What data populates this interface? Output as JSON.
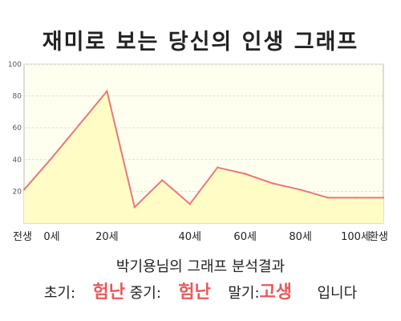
{
  "title": "재미로 보는 당신의 인생 그래프",
  "summary": {
    "subject": "박기용님의 그래프 분석결과",
    "early_label": "초기:",
    "early_value": "험난",
    "middle_label": "중기:",
    "middle_value": "험난",
    "late_label": "말기:",
    "late_value": "고생",
    "suffix": "입니다"
  },
  "colors": {
    "area_fill": "#fffcc6",
    "line": "#e8787a",
    "plot_bg": "#fffff0",
    "grid": "#dddddd",
    "value_text": "#e85a5a"
  },
  "chart_data": {
    "type": "area",
    "title": "재미로 보는 당신의 인생 그래프",
    "xlabel": "",
    "ylabel": "",
    "ylim": [
      0,
      100
    ],
    "yticks": [
      "100",
      "80",
      "60",
      "40",
      "20"
    ],
    "xtick_labels": [
      "전생",
      "0세",
      "20세",
      "40세",
      "60세",
      "80세",
      "100세",
      "환생"
    ],
    "grid": true,
    "legend": "none",
    "x": [
      "전생",
      "0세",
      "",
      "20세",
      "",
      "",
      "40세",
      "",
      "60세",
      "",
      "80세",
      "",
      "100세",
      "환생"
    ],
    "values": [
      21,
      41,
      62,
      83,
      10,
      27,
      12,
      35,
      31,
      25,
      21,
      16,
      16,
      16
    ]
  }
}
